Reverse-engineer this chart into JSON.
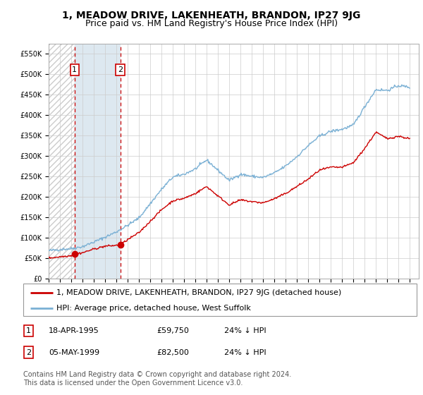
{
  "title": "1, MEADOW DRIVE, LAKENHEATH, BRANDON, IP27 9JG",
  "subtitle": "Price paid vs. HM Land Registry's House Price Index (HPI)",
  "legend_line1": "1, MEADOW DRIVE, LAKENHEATH, BRANDON, IP27 9JG (detached house)",
  "legend_line2": "HPI: Average price, detached house, West Suffolk",
  "sale1_date": "18-APR-1995",
  "sale1_price": "£59,750",
  "sale1_hpi": "24% ↓ HPI",
  "sale1_year": 1995.3,
  "sale1_value": 59750,
  "sale2_date": "05-MAY-1999",
  "sale2_price": "£82,500",
  "sale2_hpi": "24% ↓ HPI",
  "sale2_year": 1999.35,
  "sale2_value": 82500,
  "footer": "Contains HM Land Registry data © Crown copyright and database right 2024.\nThis data is licensed under the Open Government Licence v3.0.",
  "ylim": [
    0,
    575000
  ],
  "yticks": [
    0,
    50000,
    100000,
    150000,
    200000,
    250000,
    300000,
    350000,
    400000,
    450000,
    500000,
    550000
  ],
  "ytick_labels": [
    "£0",
    "£50K",
    "£100K",
    "£150K",
    "£200K",
    "£250K",
    "£300K",
    "£350K",
    "£400K",
    "£450K",
    "£500K",
    "£550K"
  ],
  "xlim_start": 1993.0,
  "xlim_end": 2025.8,
  "red_color": "#cc0000",
  "blue_color": "#7ab0d4",
  "grid_color": "#cccccc",
  "hatch_color": "#cccccc",
  "shade_color": "#dde8f0",
  "title_fontsize": 10,
  "subtitle_fontsize": 9,
  "tick_fontsize": 7,
  "legend_fontsize": 8,
  "table_fontsize": 8,
  "footer_fontsize": 7,
  "hpi_base": {
    "years": [
      1993,
      1994,
      1995,
      1996,
      1997,
      1998,
      1999,
      2000,
      2001,
      2002,
      2003,
      2004,
      2005,
      2006,
      2007,
      2008,
      2009,
      2010,
      2011,
      2012,
      2013,
      2014,
      2015,
      2016,
      2017,
      2018,
      2019,
      2020,
      2021,
      2022,
      2023,
      2024,
      2025
    ],
    "vals": [
      68000,
      71000,
      73000,
      78000,
      89000,
      101000,
      114000,
      130000,
      148000,
      183000,
      218000,
      248000,
      255000,
      268000,
      290000,
      265000,
      240000,
      255000,
      250000,
      247000,
      258000,
      275000,
      298000,
      325000,
      348000,
      360000,
      365000,
      375000,
      420000,
      462000,
      460000,
      472000,
      468000
    ]
  },
  "pp_base": {
    "years": [
      1993,
      1994,
      1995,
      1995.3,
      1996,
      1997,
      1998,
      1999,
      1999.35,
      2000,
      2001,
      2002,
      2003,
      2004,
      2005,
      2006,
      2007,
      2008,
      2009,
      2010,
      2011,
      2012,
      2013,
      2014,
      2015,
      2016,
      2017,
      2018,
      2019,
      2020,
      2021,
      2022,
      2023,
      2024,
      2025
    ],
    "vals": [
      50000,
      53000,
      56000,
      59750,
      63000,
      72000,
      79000,
      81000,
      82500,
      95000,
      112000,
      140000,
      168000,
      190000,
      196000,
      208000,
      225000,
      202000,
      180000,
      192000,
      188000,
      185000,
      195000,
      208000,
      225000,
      243000,
      265000,
      272000,
      272000,
      283000,
      318000,
      358000,
      342000,
      348000,
      342000
    ]
  }
}
